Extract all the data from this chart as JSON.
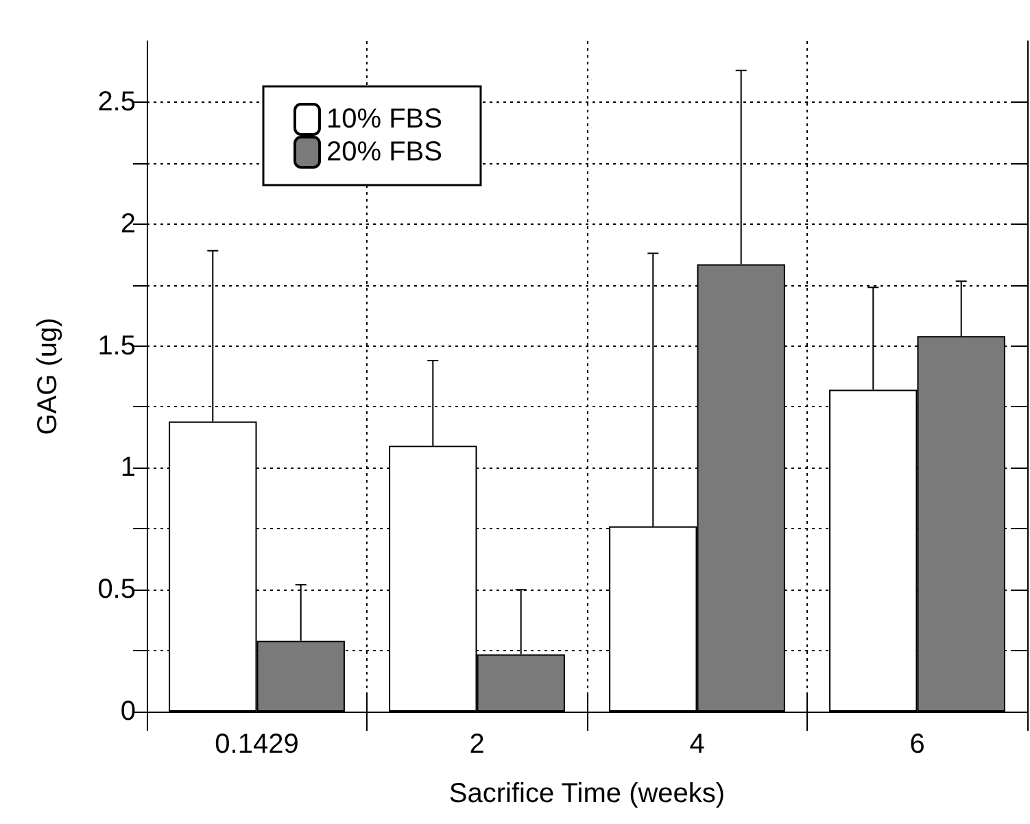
{
  "chart_data": {
    "type": "bar",
    "xlabel": "Sacrifice Time (weeks)",
    "ylabel": "GAG (ug)",
    "categories": [
      "0.1429",
      "2",
      "4",
      "6"
    ],
    "series": [
      {
        "name": "10% FBS",
        "color": "#ffffff",
        "values": [
          1.19,
          1.09,
          0.76,
          1.32
        ],
        "errors": [
          [
            1.19,
            1.89
          ],
          [
            1.09,
            1.44
          ],
          [
            0.76,
            1.88
          ],
          [
            1.32,
            1.74
          ]
        ]
      },
      {
        "name": "20% FBS",
        "color": "#7a7a7a",
        "values": [
          0.29,
          0.235,
          1.835,
          1.54
        ],
        "errors": [
          [
            0.29,
            0.52
          ],
          [
            0.235,
            0.5
          ],
          [
            1.835,
            2.63
          ],
          [
            1.54,
            1.765
          ]
        ]
      }
    ],
    "ylim": [
      0,
      2.75
    ],
    "yticks": [
      0,
      {
        "value": 0.25,
        "label": null
      },
      0.5,
      {
        "value": 0.75,
        "label": null
      },
      1,
      {
        "value": 1.25,
        "label": null
      },
      1.5,
      {
        "value": 1.75,
        "label": null
      },
      2,
      {
        "value": 2.25,
        "label": null
      },
      2.5
    ],
    "grid": true,
    "legend": "top left"
  }
}
